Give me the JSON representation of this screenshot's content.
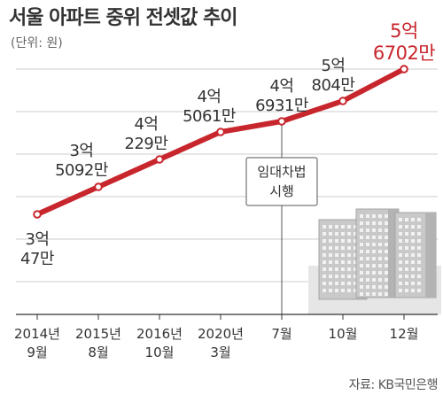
{
  "header": {
    "title": "서울 아파트 중위 전셋값 추이",
    "subtitle": "(단위: 원)"
  },
  "annotation": {
    "line1": "임대차법",
    "line2": "시행"
  },
  "source": "자료: KB국민은행",
  "colors": {
    "line": "#c8262d",
    "marker_fill": "#ffffff",
    "highlight_label": "#c8262d",
    "label": "#333333",
    "grid": "#cccccc",
    "axis": "#333333",
    "building": "#c9c9c9"
  },
  "chart_data": {
    "type": "line",
    "title": "서울 아파트 중위 전셋값 추이",
    "unit_label": "(단위: 원)",
    "categories": [
      [
        "2014년",
        "9월"
      ],
      [
        "2015년",
        "8월"
      ],
      [
        "2016년",
        "10월"
      ],
      [
        "2020년",
        "3월"
      ],
      [
        "7월"
      ],
      [
        "10월"
      ],
      [
        "12월"
      ]
    ],
    "values": [
      300470000,
      350920000,
      402290000,
      450610000,
      469310000,
      508040000,
      567020000
    ],
    "data_labels": [
      [
        "3억",
        "47만"
      ],
      [
        "3억",
        "5092만"
      ],
      [
        "4억",
        "229만"
      ],
      [
        "4억",
        "5061만"
      ],
      [
        "4억",
        "6931만"
      ],
      [
        "5억",
        "804만"
      ],
      [
        "5억",
        "6702만"
      ]
    ],
    "highlight_index": 6,
    "annotation_index": 4,
    "grid": true
  }
}
